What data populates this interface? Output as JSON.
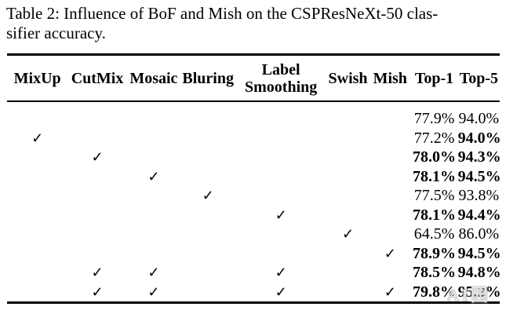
{
  "page": {
    "background_color": "#ffffff",
    "text_color": "#000000",
    "rule_color": "#000000"
  },
  "caption": {
    "line1": "Table 2: Influence of BoF and Mish on the CSPResNeXt-50 clas-",
    "line2": "sifier accuracy."
  },
  "table": {
    "checkmark_glyph": "✓",
    "headers": [
      {
        "id": "mixup",
        "lines": [
          "MixUp"
        ]
      },
      {
        "id": "cutmix",
        "lines": [
          "CutMix"
        ]
      },
      {
        "id": "mosaic",
        "lines": [
          "Mosaic"
        ]
      },
      {
        "id": "bluring",
        "lines": [
          "Bluring"
        ]
      },
      {
        "id": "label-smoothing",
        "lines": [
          "Label",
          "Smoothing"
        ]
      },
      {
        "id": "swish",
        "lines": [
          "Swish"
        ]
      },
      {
        "id": "mish",
        "lines": [
          "Mish"
        ]
      },
      {
        "id": "top-1",
        "lines": [
          "Top-1"
        ]
      },
      {
        "id": "top-5",
        "lines": [
          "Top-5"
        ]
      }
    ],
    "rows": [
      {
        "cells": [
          "",
          "",
          "",
          "",
          "",
          "",
          "",
          "77.9%",
          "94.0%"
        ],
        "bold": [
          false,
          false,
          false,
          false,
          false,
          false,
          false,
          false,
          false
        ]
      },
      {
        "cells": [
          "✓",
          "",
          "",
          "",
          "",
          "",
          "",
          "77.2%",
          "94.0%"
        ],
        "bold": [
          false,
          false,
          false,
          false,
          false,
          false,
          false,
          false,
          true
        ]
      },
      {
        "cells": [
          "",
          "✓",
          "",
          "",
          "",
          "",
          "",
          "78.0%",
          "94.3%"
        ],
        "bold": [
          false,
          false,
          false,
          false,
          false,
          false,
          false,
          true,
          true
        ]
      },
      {
        "cells": [
          "",
          "",
          "✓",
          "",
          "",
          "",
          "",
          "78.1%",
          "94.5%"
        ],
        "bold": [
          false,
          false,
          false,
          false,
          false,
          false,
          false,
          true,
          true
        ]
      },
      {
        "cells": [
          "",
          "",
          "",
          "✓",
          "",
          "",
          "",
          "77.5%",
          "93.8%"
        ],
        "bold": [
          false,
          false,
          false,
          false,
          false,
          false,
          false,
          false,
          false
        ]
      },
      {
        "cells": [
          "",
          "",
          "",
          "",
          "✓",
          "",
          "",
          "78.1%",
          "94.4%"
        ],
        "bold": [
          false,
          false,
          false,
          false,
          false,
          false,
          false,
          true,
          true
        ]
      },
      {
        "cells": [
          "",
          "",
          "",
          "",
          "",
          "✓",
          "",
          "64.5%",
          "86.0%"
        ],
        "bold": [
          false,
          false,
          false,
          false,
          false,
          false,
          false,
          false,
          false
        ]
      },
      {
        "cells": [
          "",
          "",
          "",
          "",
          "",
          "",
          "✓",
          "78.9%",
          "94.5%"
        ],
        "bold": [
          false,
          false,
          false,
          false,
          false,
          false,
          false,
          true,
          true
        ]
      },
      {
        "cells": [
          "",
          "✓",
          "✓",
          "",
          "✓",
          "",
          "",
          "78.5%",
          "94.8%"
        ],
        "bold": [
          false,
          false,
          false,
          false,
          false,
          false,
          false,
          true,
          true
        ]
      },
      {
        "cells": [
          "",
          "✓",
          "✓",
          "",
          "✓",
          "",
          "✓",
          "79.8%",
          "95.2%"
        ],
        "bold": [
          false,
          false,
          false,
          false,
          false,
          false,
          false,
          true,
          true
        ]
      }
    ]
  },
  "watermark": {
    "text": "AI园"
  }
}
